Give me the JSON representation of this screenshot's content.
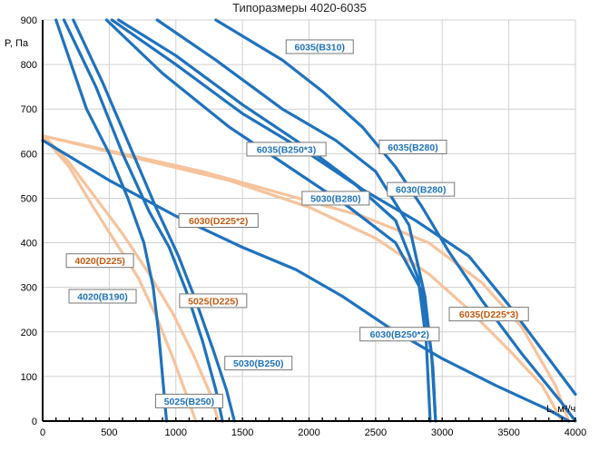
{
  "chart_data": {
    "type": "line",
    "title": "Типоразмеры 4020-6035",
    "xlabel": "L, м³/ч",
    "ylabel": "P, Па",
    "xlim": [
      0,
      4000
    ],
    "ylim": [
      0,
      900
    ],
    "x_ticks": [
      0,
      500,
      1000,
      1500,
      2000,
      2500,
      3000,
      3500,
      4000
    ],
    "y_ticks": [
      0,
      100,
      200,
      300,
      400,
      500,
      600,
      700,
      800,
      900
    ],
    "grid": true,
    "colors": {
      "blue": "#1f72bd",
      "orange": "#f6c39c",
      "label_blue": "#1f72bd",
      "label_orange": "#c55a11"
    },
    "series": [
      {
        "name": "4020(B190)",
        "color": "blue",
        "points": [
          [
            100,
            900
          ],
          [
            330,
            700
          ],
          [
            500,
            600
          ],
          [
            640,
            500
          ],
          [
            760,
            400
          ],
          [
            830,
            300
          ],
          [
            870,
            200
          ],
          [
            900,
            100
          ],
          [
            930,
            0
          ]
        ]
      },
      {
        "name": "4020(D225)",
        "color": "orange",
        "points": [
          [
            0,
            640
          ],
          [
            200,
            570
          ],
          [
            380,
            480
          ],
          [
            550,
            400
          ],
          [
            720,
            320
          ],
          [
            860,
            230
          ],
          [
            980,
            140
          ],
          [
            1090,
            50
          ],
          [
            1150,
            0
          ]
        ]
      },
      {
        "name": "5025(D225)",
        "color": "orange",
        "points": [
          [
            10,
            640
          ],
          [
            200,
            580
          ],
          [
            400,
            500
          ],
          [
            600,
            420
          ],
          [
            800,
            330
          ],
          [
            980,
            240
          ],
          [
            1130,
            150
          ],
          [
            1260,
            60
          ],
          [
            1320,
            0
          ]
        ]
      },
      {
        "name": "5025(B250)",
        "color": "blue",
        "points": [
          [
            160,
            900
          ],
          [
            400,
            750
          ],
          [
            600,
            600
          ],
          [
            800,
            470
          ],
          [
            950,
            390
          ],
          [
            1080,
            290
          ],
          [
            1200,
            180
          ],
          [
            1300,
            70
          ],
          [
            1350,
            0
          ]
        ]
      },
      {
        "name": "5030(B250)",
        "color": "blue",
        "points": [
          [
            230,
            900
          ],
          [
            450,
            760
          ],
          [
            650,
            620
          ],
          [
            850,
            480
          ],
          [
            1020,
            370
          ],
          [
            1150,
            270
          ],
          [
            1280,
            160
          ],
          [
            1380,
            70
          ],
          [
            1440,
            0
          ]
        ]
      },
      {
        "name": "5030(B280)",
        "color": "blue",
        "points": [
          [
            480,
            900
          ],
          [
            900,
            780
          ],
          [
            1400,
            660
          ],
          [
            1900,
            560
          ],
          [
            2300,
            480
          ],
          [
            2650,
            400
          ],
          [
            2850,
            290
          ],
          [
            2920,
            150
          ],
          [
            2950,
            0
          ]
        ]
      },
      {
        "name": "6030(B250*2)",
        "color": "blue",
        "points": [
          [
            0,
            630
          ],
          [
            500,
            540
          ],
          [
            1000,
            460
          ],
          [
            1500,
            390
          ],
          [
            1900,
            340
          ],
          [
            2250,
            280
          ],
          [
            2600,
            210
          ],
          [
            3000,
            140
          ],
          [
            3400,
            80
          ],
          [
            3800,
            25
          ],
          [
            3950,
            0
          ]
        ]
      },
      {
        "name": "6030(B280)",
        "color": "blue",
        "points": [
          [
            520,
            900
          ],
          [
            1000,
            800
          ],
          [
            1500,
            690
          ],
          [
            2000,
            600
          ],
          [
            2350,
            530
          ],
          [
            2650,
            450
          ],
          [
            2820,
            320
          ],
          [
            2880,
            180
          ],
          [
            2910,
            0
          ]
        ]
      },
      {
        "name": "6030(D225*2)",
        "color": "orange",
        "points": [
          [
            0,
            640
          ],
          [
            600,
            600
          ],
          [
            1200,
            560
          ],
          [
            1800,
            510
          ],
          [
            2400,
            460
          ],
          [
            2900,
            400
          ],
          [
            3300,
            310
          ],
          [
            3600,
            210
          ],
          [
            3850,
            80
          ],
          [
            3950,
            0
          ]
        ]
      },
      {
        "name": "6035(B250*3)",
        "color": "blue",
        "points": [
          [
            570,
            900
          ],
          [
            1000,
            820
          ],
          [
            1500,
            710
          ],
          [
            2000,
            610
          ],
          [
            2400,
            520
          ],
          [
            2800,
            450
          ],
          [
            3200,
            370
          ],
          [
            3500,
            260
          ],
          [
            3800,
            140
          ],
          [
            4000,
            60
          ]
        ]
      },
      {
        "name": "6035(B280)",
        "color": "blue",
        "points": [
          [
            860,
            900
          ],
          [
            1300,
            810
          ],
          [
            1800,
            700
          ],
          [
            2200,
            630
          ],
          [
            2500,
            560
          ],
          [
            2750,
            440
          ],
          [
            2870,
            280
          ],
          [
            2930,
            120
          ],
          [
            2950,
            0
          ]
        ]
      },
      {
        "name": "6035(B310)",
        "color": "blue",
        "points": [
          [
            1300,
            900
          ],
          [
            1800,
            810
          ],
          [
            2100,
            740
          ],
          [
            2400,
            660
          ],
          [
            2650,
            570
          ],
          [
            2850,
            480
          ],
          [
            3050,
            380
          ],
          [
            3300,
            270
          ],
          [
            3600,
            150
          ],
          [
            3900,
            40
          ],
          [
            4000,
            0
          ]
        ]
      },
      {
        "name": "6035(D225*3)",
        "color": "orange",
        "points": [
          [
            0,
            640
          ],
          [
            700,
            590
          ],
          [
            1400,
            540
          ],
          [
            2000,
            480
          ],
          [
            2500,
            410
          ],
          [
            2900,
            330
          ],
          [
            3200,
            250
          ],
          [
            3500,
            160
          ],
          [
            3750,
            80
          ],
          [
            3900,
            0
          ]
        ]
      }
    ],
    "labels": [
      {
        "text": "6035(B310)",
        "color": "blue",
        "at": [
          2080,
          840
        ]
      },
      {
        "text": "6035(B250*3)",
        "color": "blue",
        "at": [
          1830,
          610
        ]
      },
      {
        "text": "6035(B280)",
        "color": "blue",
        "at": [
          2780,
          615
        ]
      },
      {
        "text": "6030(B280)",
        "color": "blue",
        "at": [
          2840,
          520
        ]
      },
      {
        "text": "5030(B280)",
        "color": "blue",
        "at": [
          2200,
          500
        ]
      },
      {
        "text": "6030(D225*2)",
        "color": "orange",
        "at": [
          1320,
          450
        ]
      },
      {
        "text": "4020(D225)",
        "color": "orange",
        "at": [
          430,
          360
        ]
      },
      {
        "text": "4020(B190)",
        "color": "blue",
        "at": [
          450,
          280
        ]
      },
      {
        "text": "5025(D225)",
        "color": "orange",
        "at": [
          1280,
          270
        ]
      },
      {
        "text": "6035(D225*3)",
        "color": "orange",
        "at": [
          3350,
          240
        ]
      },
      {
        "text": "6030(B250*2)",
        "color": "blue",
        "at": [
          2680,
          195
        ]
      },
      {
        "text": "5030(B250)",
        "color": "blue",
        "at": [
          1620,
          130
        ]
      },
      {
        "text": "5025(B250)",
        "color": "blue",
        "at": [
          1100,
          45
        ]
      }
    ]
  }
}
